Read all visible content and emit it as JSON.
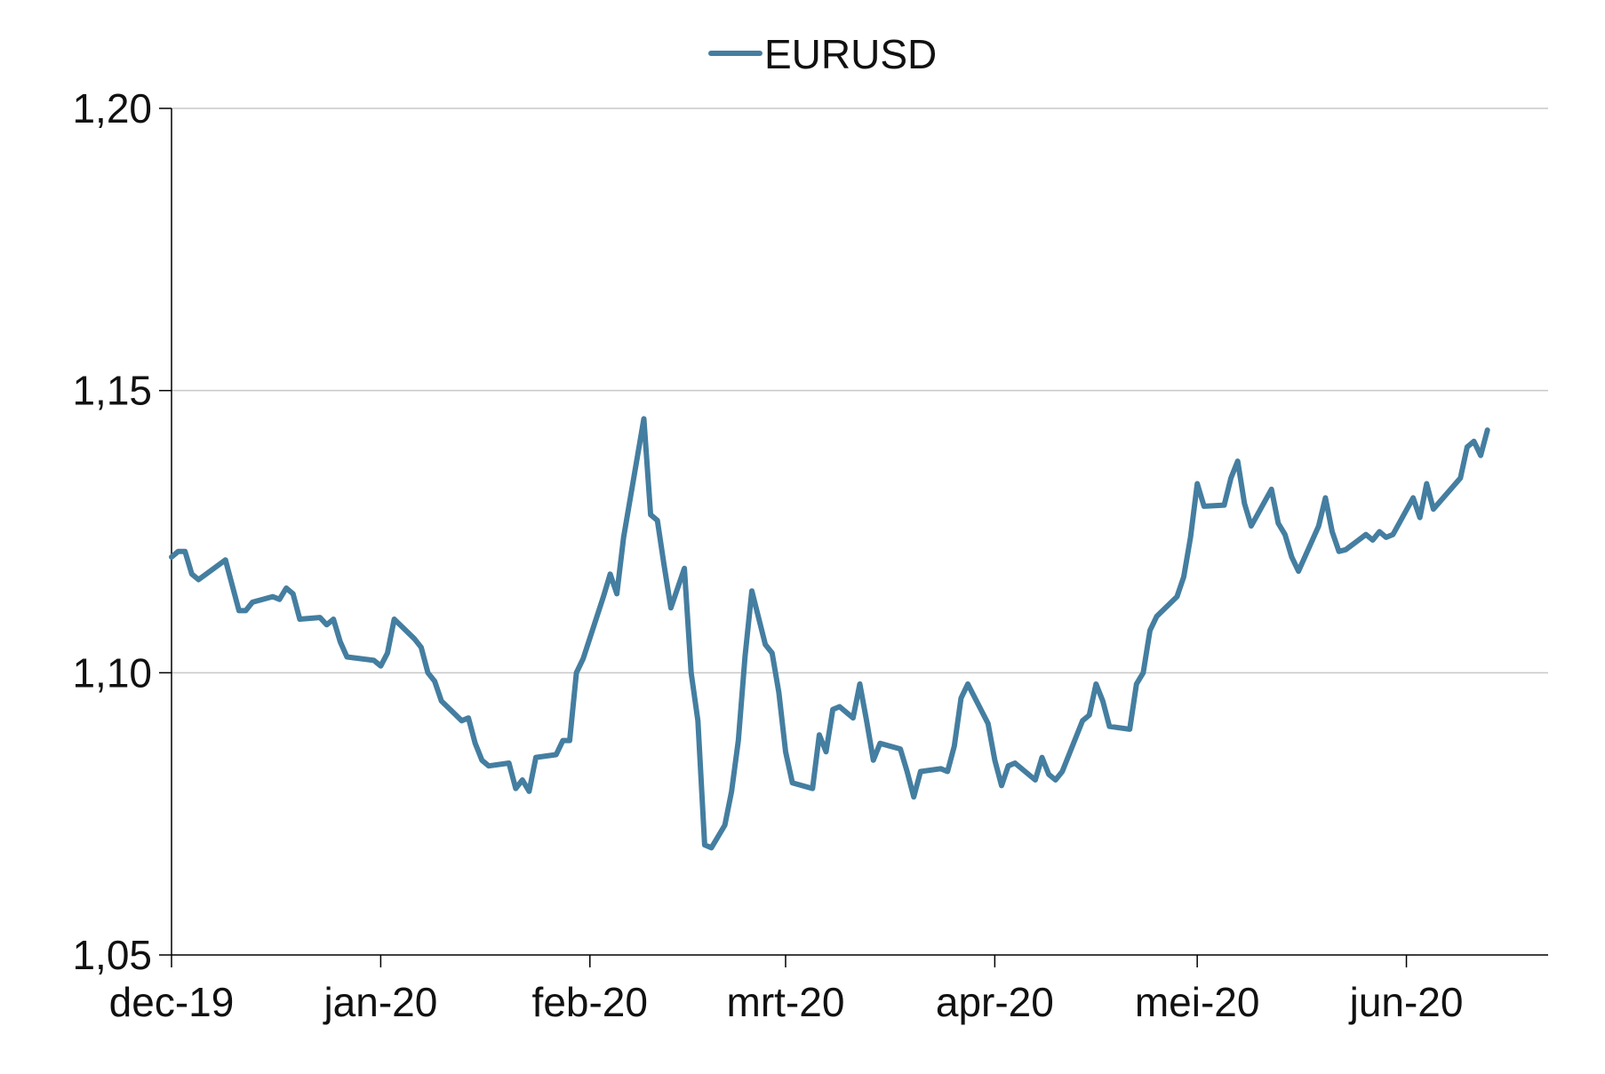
{
  "chart_data": {
    "type": "line",
    "title": "",
    "xlabel": "",
    "ylabel": "",
    "ylim": [
      1.05,
      1.2
    ],
    "y_ticks": [
      1.05,
      1.1,
      1.15,
      1.2
    ],
    "y_tick_labels": [
      "1,05",
      "1,10",
      "1,15",
      "1,20"
    ],
    "x_ticks": [
      "2019-12-01",
      "2020-01-01",
      "2020-02-01",
      "2020-03-01",
      "2020-04-01",
      "2020-05-01",
      "2020-06-01"
    ],
    "x_tick_labels": [
      "dec-19",
      "jan-20",
      "feb-20",
      "mrt-20",
      "apr-20",
      "mei-20",
      "jun-20"
    ],
    "xlim": [
      "2019-12-01",
      "2020-06-22"
    ],
    "grid": "horizontal",
    "legend_position": "top-center",
    "series": [
      {
        "name": "EURUSD",
        "color": "#447ea0",
        "points": [
          [
            "2019-12-01",
            1.1205
          ],
          [
            "2019-12-02",
            1.1215
          ],
          [
            "2019-12-03",
            1.1215
          ],
          [
            "2019-12-04",
            1.1175
          ],
          [
            "2019-12-05",
            1.1165
          ],
          [
            "2019-12-09",
            1.12
          ],
          [
            "2019-12-11",
            1.111
          ],
          [
            "2019-12-12",
            1.111
          ],
          [
            "2019-12-13",
            1.1125
          ],
          [
            "2019-12-16",
            1.1135
          ],
          [
            "2019-12-17",
            1.113
          ],
          [
            "2019-12-18",
            1.115
          ],
          [
            "2019-12-19",
            1.114
          ],
          [
            "2019-12-20",
            1.1095
          ],
          [
            "2019-12-23",
            1.1098
          ],
          [
            "2019-12-24",
            1.1085
          ],
          [
            "2019-12-25",
            1.1095
          ],
          [
            "2019-12-26",
            1.1055
          ],
          [
            "2019-12-27",
            1.1028
          ],
          [
            "2019-12-31",
            1.1022
          ],
          [
            "2020-01-01",
            1.1012
          ],
          [
            "2020-01-02",
            1.1035
          ],
          [
            "2020-01-03",
            1.1095
          ],
          [
            "2020-01-06",
            1.106
          ],
          [
            "2020-01-07",
            1.1045
          ],
          [
            "2020-01-08",
            1.1
          ],
          [
            "2020-01-09",
            1.0985
          ],
          [
            "2020-01-10",
            1.095
          ],
          [
            "2020-01-13",
            1.0915
          ],
          [
            "2020-01-14",
            1.092
          ],
          [
            "2020-01-15",
            1.0875
          ],
          [
            "2020-01-16",
            1.0845
          ],
          [
            "2020-01-17",
            1.0835
          ],
          [
            "2020-01-20",
            1.084
          ],
          [
            "2020-01-21",
            1.0795
          ],
          [
            "2020-01-22",
            1.081
          ],
          [
            "2020-01-23",
            1.079
          ],
          [
            "2020-01-24",
            1.085
          ],
          [
            "2020-01-27",
            1.0855
          ],
          [
            "2020-01-28",
            1.088
          ],
          [
            "2020-01-29",
            1.088
          ],
          [
            "2020-01-30",
            1.1
          ],
          [
            "2020-01-31",
            1.1025
          ],
          [
            "2020-02-03",
            1.1135
          ],
          [
            "2020-02-04",
            1.1175
          ],
          [
            "2020-02-05",
            1.114
          ],
          [
            "2020-02-06",
            1.124
          ],
          [
            "2020-02-09",
            1.145
          ],
          [
            "2020-02-10",
            1.128
          ],
          [
            "2020-02-11",
            1.127
          ],
          [
            "2020-02-12",
            1.119
          ],
          [
            "2020-02-13",
            1.1115
          ],
          [
            "2020-02-15",
            1.1185
          ],
          [
            "2020-02-16",
            1.1
          ],
          [
            "2020-02-17",
            1.0915
          ],
          [
            "2020-02-18",
            1.0695
          ],
          [
            "2020-02-19",
            1.069
          ],
          [
            "2020-02-21",
            1.073
          ],
          [
            "2020-02-22",
            1.079
          ],
          [
            "2020-02-23",
            1.088
          ],
          [
            "2020-02-24",
            1.103
          ],
          [
            "2020-02-25",
            1.1145
          ],
          [
            "2020-02-27",
            1.105
          ],
          [
            "2020-02-28",
            1.1035
          ],
          [
            "2020-02-29",
            1.0965
          ],
          [
            "2020-03-01",
            1.086
          ],
          [
            "2020-03-02",
            1.0805
          ],
          [
            "2020-03-05",
            1.0795
          ],
          [
            "2020-03-06",
            1.089
          ],
          [
            "2020-03-07",
            1.086
          ],
          [
            "2020-03-08",
            1.0935
          ],
          [
            "2020-03-09",
            1.094
          ],
          [
            "2020-03-11",
            1.092
          ],
          [
            "2020-03-12",
            1.098
          ],
          [
            "2020-03-13",
            1.0915
          ],
          [
            "2020-03-14",
            1.0845
          ],
          [
            "2020-03-15",
            1.0875
          ],
          [
            "2020-03-18",
            1.0865
          ],
          [
            "2020-03-19",
            1.0825
          ],
          [
            "2020-03-20",
            1.078
          ],
          [
            "2020-03-21",
            1.0825
          ],
          [
            "2020-03-24",
            1.083
          ],
          [
            "2020-03-25",
            1.0825
          ],
          [
            "2020-03-26",
            1.087
          ],
          [
            "2020-03-27",
            1.0955
          ],
          [
            "2020-03-28",
            1.098
          ],
          [
            "2020-03-31",
            1.091
          ],
          [
            "2020-04-01",
            1.0845
          ],
          [
            "2020-04-02",
            1.08
          ],
          [
            "2020-04-03",
            1.0835
          ],
          [
            "2020-04-04",
            1.084
          ],
          [
            "2020-04-07",
            1.081
          ],
          [
            "2020-04-08",
            1.085
          ],
          [
            "2020-04-09",
            1.082
          ],
          [
            "2020-04-10",
            1.081
          ],
          [
            "2020-04-11",
            1.0825
          ],
          [
            "2020-04-14",
            1.0915
          ],
          [
            "2020-04-15",
            1.0925
          ],
          [
            "2020-04-16",
            1.098
          ],
          [
            "2020-04-17",
            1.095
          ],
          [
            "2020-04-18",
            1.0905
          ],
          [
            "2020-04-21",
            1.09
          ],
          [
            "2020-04-22",
            1.098
          ],
          [
            "2020-04-23",
            1.1
          ],
          [
            "2020-04-24",
            1.1075
          ],
          [
            "2020-04-25",
            1.11
          ],
          [
            "2020-04-28",
            1.1135
          ],
          [
            "2020-04-29",
            1.117
          ],
          [
            "2020-04-30",
            1.124
          ],
          [
            "2020-05-01",
            1.1335
          ],
          [
            "2020-05-02",
            1.1295
          ],
          [
            "2020-05-05",
            1.1297
          ],
          [
            "2020-05-06",
            1.1345
          ],
          [
            "2020-05-07",
            1.1375
          ],
          [
            "2020-05-08",
            1.13
          ],
          [
            "2020-05-09",
            1.126
          ],
          [
            "2020-05-12",
            1.1325
          ],
          [
            "2020-05-13",
            1.1265
          ],
          [
            "2020-05-14",
            1.1245
          ],
          [
            "2020-05-15",
            1.1205
          ],
          [
            "2020-05-16",
            1.118
          ],
          [
            "2020-05-19",
            1.126
          ],
          [
            "2020-05-20",
            1.131
          ],
          [
            "2020-05-21",
            1.125
          ],
          [
            "2020-05-22",
            1.1215
          ],
          [
            "2020-05-23",
            1.1218
          ],
          [
            "2020-05-26",
            1.1245
          ],
          [
            "2020-05-27",
            1.1235
          ],
          [
            "2020-05-28",
            1.125
          ],
          [
            "2020-05-29",
            1.124
          ],
          [
            "2020-05-30",
            1.1245
          ],
          [
            "2020-06-02",
            1.131
          ],
          [
            "2020-06-03",
            1.1275
          ],
          [
            "2020-06-04",
            1.1335
          ],
          [
            "2020-06-05",
            1.129
          ],
          [
            "2020-06-09",
            1.1345
          ],
          [
            "2020-06-10",
            1.14
          ],
          [
            "2020-06-11",
            1.141
          ],
          [
            "2020-06-12",
            1.1385
          ],
          [
            "2020-06-13",
            1.143
          ]
        ]
      }
    ]
  }
}
